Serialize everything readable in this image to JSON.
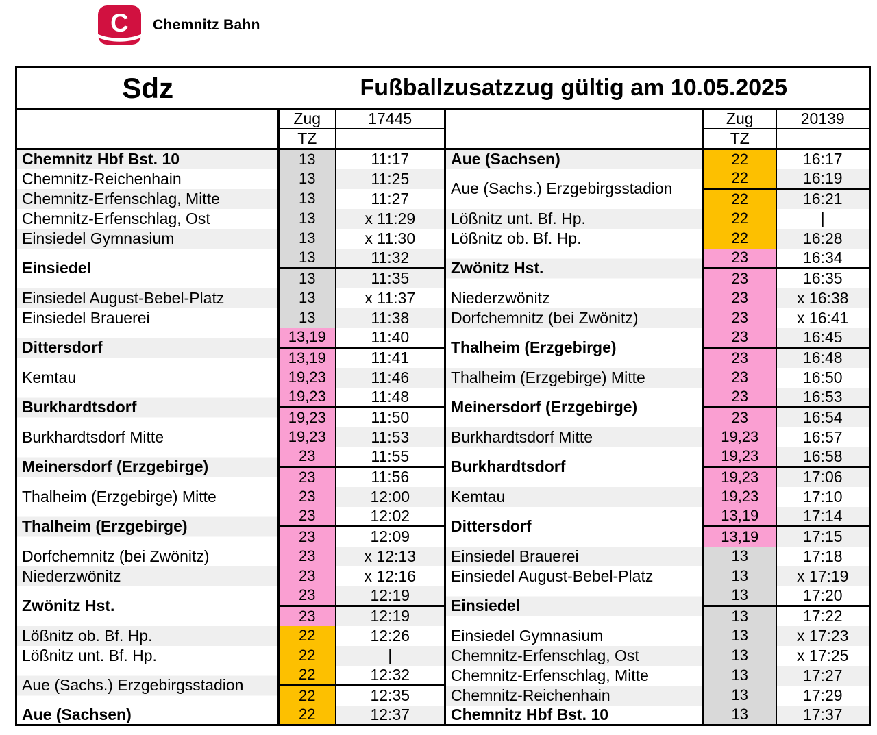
{
  "brand": {
    "name": "Chemnitz Bahn",
    "logo_letter": "C"
  },
  "header": {
    "train_type": "Sdz",
    "title": "Fußballzusatzzug gültig am 10.05.2025"
  },
  "labels": {
    "zug": "Zug",
    "tz": "TZ"
  },
  "colors": {
    "brand_red": "#d11140",
    "tz_gray": "#d9d9d9",
    "tz_pink": "#fa9fd2",
    "tz_orange": "#fdc000",
    "band": "#efefef",
    "border": "#000000"
  },
  "tables": [
    {
      "side": "left",
      "train_number": "17445",
      "entries": [
        {
          "station": "Chemnitz Hbf Bst. 10",
          "bold": true,
          "stops": [
            {
              "tz": "13",
              "c": "g",
              "t": "11:17"
            }
          ]
        },
        {
          "station": "Chemnitz-Reichenhain",
          "bold": false,
          "stops": [
            {
              "tz": "13",
              "c": "g",
              "t": "11:25"
            }
          ]
        },
        {
          "station": "Chemnitz-Erfenschlag, Mitte",
          "bold": false,
          "stops": [
            {
              "tz": "13",
              "c": "g",
              "t": "11:27"
            }
          ]
        },
        {
          "station": "Chemnitz-Erfenschlag, Ost",
          "bold": false,
          "stops": [
            {
              "tz": "13",
              "c": "g",
              "t": "x 11:29"
            }
          ]
        },
        {
          "station": "Einsiedel Gymnasium",
          "bold": false,
          "stops": [
            {
              "tz": "13",
              "c": "g",
              "t": "x 11:30"
            }
          ]
        },
        {
          "station": "Einsiedel",
          "bold": true,
          "stops": [
            {
              "tz": "13",
              "c": "g",
              "t": "11:32"
            },
            {
              "tz": "13",
              "c": "g",
              "t": "11:35"
            }
          ]
        },
        {
          "station": "Einsiedel August-Bebel-Platz",
          "bold": false,
          "stops": [
            {
              "tz": "13",
              "c": "g",
              "t": "x 11:37"
            }
          ]
        },
        {
          "station": "Einsiedel Brauerei",
          "bold": false,
          "stops": [
            {
              "tz": "13",
              "c": "g",
              "t": "11:38"
            }
          ]
        },
        {
          "station": "Dittersdorf",
          "bold": true,
          "stops": [
            {
              "tz": "13,19",
              "c": "p",
              "t": "11:40"
            },
            {
              "tz": "13,19",
              "c": "p",
              "t": "11:41"
            }
          ]
        },
        {
          "station": "Kemtau",
          "bold": false,
          "stops": [
            {
              "tz": "19,23",
              "c": "p",
              "t": "11:46"
            }
          ]
        },
        {
          "station": "Burkhardtsdorf",
          "bold": true,
          "stops": [
            {
              "tz": "19,23",
              "c": "p",
              "t": "11:48"
            },
            {
              "tz": "19,23",
              "c": "p",
              "t": "11:50"
            }
          ]
        },
        {
          "station": "Burkhardtsdorf Mitte",
          "bold": false,
          "stops": [
            {
              "tz": "19,23",
              "c": "p",
              "t": "11:53"
            }
          ]
        },
        {
          "station": "Meinersdorf (Erzgebirge)",
          "bold": true,
          "stops": [
            {
              "tz": "23",
              "c": "p",
              "t": "11:55"
            },
            {
              "tz": "23",
              "c": "p",
              "t": "11:56"
            }
          ]
        },
        {
          "station": "Thalheim (Erzgebirge) Mitte",
          "bold": false,
          "stops": [
            {
              "tz": "23",
              "c": "p",
              "t": "12:00"
            }
          ]
        },
        {
          "station": "Thalheim (Erzgebirge)",
          "bold": true,
          "stops": [
            {
              "tz": "23",
              "c": "p",
              "t": "12:02"
            },
            {
              "tz": "23",
              "c": "p",
              "t": "12:09"
            }
          ]
        },
        {
          "station": "Dorfchemnitz (bei Zwönitz)",
          "bold": false,
          "stops": [
            {
              "tz": "23",
              "c": "p",
              "t": "x 12:13"
            }
          ]
        },
        {
          "station": "Niederzwönitz",
          "bold": false,
          "stops": [
            {
              "tz": "23",
              "c": "p",
              "t": "x 12:16"
            }
          ]
        },
        {
          "station": "Zwönitz Hst.",
          "bold": true,
          "stops": [
            {
              "tz": "23",
              "c": "p",
              "t": "12:19"
            },
            {
              "tz": "23",
              "c": "p",
              "t": "12:19"
            }
          ]
        },
        {
          "station": "Lößnitz ob. Bf. Hp.",
          "bold": false,
          "stops": [
            {
              "tz": "22",
              "c": "o",
              "t": "12:26"
            }
          ]
        },
        {
          "station": "Lößnitz unt. Bf. Hp.",
          "bold": false,
          "stops": [
            {
              "tz": "22",
              "c": "o",
              "t": "|"
            }
          ]
        },
        {
          "station": "Aue (Sachs.) Erzgebirgsstadion",
          "bold": false,
          "stops": [
            {
              "tz": "22",
              "c": "o",
              "t": "12:32"
            },
            {
              "tz": "22",
              "c": "o",
              "t": "12:35"
            }
          ]
        },
        {
          "station": "Aue (Sachsen)",
          "bold": true,
          "stops": [
            {
              "tz": "22",
              "c": "o",
              "t": "12:37"
            }
          ]
        }
      ]
    },
    {
      "side": "right",
      "train_number": "20139",
      "entries": [
        {
          "station": "Aue (Sachsen)",
          "bold": true,
          "stops": [
            {
              "tz": "22",
              "c": "o",
              "t": "16:17"
            }
          ]
        },
        {
          "station": "Aue (Sachs.) Erzgebirgsstadion",
          "bold": false,
          "stops": [
            {
              "tz": "22",
              "c": "o",
              "t": "16:19"
            },
            {
              "tz": "22",
              "c": "o",
              "t": "16:21"
            }
          ]
        },
        {
          "station": "Lößnitz unt. Bf. Hp.",
          "bold": false,
          "stops": [
            {
              "tz": "22",
              "c": "o",
              "t": "|"
            }
          ]
        },
        {
          "station": "Lößnitz ob. Bf. Hp.",
          "bold": false,
          "stops": [
            {
              "tz": "22",
              "c": "o",
              "t": "16:28"
            }
          ]
        },
        {
          "station": "Zwönitz Hst.",
          "bold": true,
          "stops": [
            {
              "tz": "23",
              "c": "p",
              "t": "16:34"
            },
            {
              "tz": "23",
              "c": "p",
              "t": "16:35"
            }
          ]
        },
        {
          "station": "Niederzwönitz",
          "bold": false,
          "stops": [
            {
              "tz": "23",
              "c": "p",
              "t": "x 16:38"
            }
          ]
        },
        {
          "station": "Dorfchemnitz (bei Zwönitz)",
          "bold": false,
          "stops": [
            {
              "tz": "23",
              "c": "p",
              "t": "x 16:41"
            }
          ]
        },
        {
          "station": "Thalheim (Erzgebirge)",
          "bold": true,
          "stops": [
            {
              "tz": "23",
              "c": "p",
              "t": "16:45"
            },
            {
              "tz": "23",
              "c": "p",
              "t": "16:48"
            }
          ]
        },
        {
          "station": "Thalheim (Erzgebirge) Mitte",
          "bold": false,
          "stops": [
            {
              "tz": "23",
              "c": "p",
              "t": "16:50"
            }
          ]
        },
        {
          "station": "Meinersdorf (Erzgebirge)",
          "bold": true,
          "stops": [
            {
              "tz": "23",
              "c": "p",
              "t": "16:53"
            },
            {
              "tz": "23",
              "c": "p",
              "t": "16:54"
            }
          ]
        },
        {
          "station": "Burkhardtsdorf Mitte",
          "bold": false,
          "stops": [
            {
              "tz": "19,23",
              "c": "p",
              "t": "16:57"
            }
          ]
        },
        {
          "station": "Burkhardtsdorf",
          "bold": true,
          "stops": [
            {
              "tz": "19,23",
              "c": "p",
              "t": "16:58"
            },
            {
              "tz": "19,23",
              "c": "p",
              "t": "17:06"
            }
          ]
        },
        {
          "station": "Kemtau",
          "bold": false,
          "stops": [
            {
              "tz": "19,23",
              "c": "p",
              "t": "17:10"
            }
          ]
        },
        {
          "station": "Dittersdorf",
          "bold": true,
          "stops": [
            {
              "tz": "13,19",
              "c": "p",
              "t": "17:14"
            },
            {
              "tz": "13,19",
              "c": "p",
              "t": "17:15"
            }
          ]
        },
        {
          "station": "Einsiedel Brauerei",
          "bold": false,
          "stops": [
            {
              "tz": "13",
              "c": "g",
              "t": "17:18"
            }
          ]
        },
        {
          "station": "Einsiedel August-Bebel-Platz",
          "bold": false,
          "stops": [
            {
              "tz": "13",
              "c": "g",
              "t": "x 17:19"
            }
          ]
        },
        {
          "station": "Einsiedel",
          "bold": true,
          "stops": [
            {
              "tz": "13",
              "c": "g",
              "t": "17:20"
            },
            {
              "tz": "13",
              "c": "g",
              "t": "17:22"
            }
          ]
        },
        {
          "station": "Einsiedel Gymnasium",
          "bold": false,
          "stops": [
            {
              "tz": "13",
              "c": "g",
              "t": "x 17:23"
            }
          ]
        },
        {
          "station": "Chemnitz-Erfenschlag, Ost",
          "bold": false,
          "stops": [
            {
              "tz": "13",
              "c": "g",
              "t": "x 17:25"
            }
          ]
        },
        {
          "station": "Chemnitz-Erfenschlag, Mitte",
          "bold": false,
          "stops": [
            {
              "tz": "13",
              "c": "g",
              "t": "17:27"
            }
          ]
        },
        {
          "station": "Chemnitz-Reichenhain",
          "bold": false,
          "stops": [
            {
              "tz": "13",
              "c": "g",
              "t": "17:29"
            }
          ]
        },
        {
          "station": "Chemnitz Hbf Bst. 10",
          "bold": true,
          "stops": [
            {
              "tz": "13",
              "c": "g",
              "t": "17:37"
            }
          ]
        }
      ]
    }
  ]
}
